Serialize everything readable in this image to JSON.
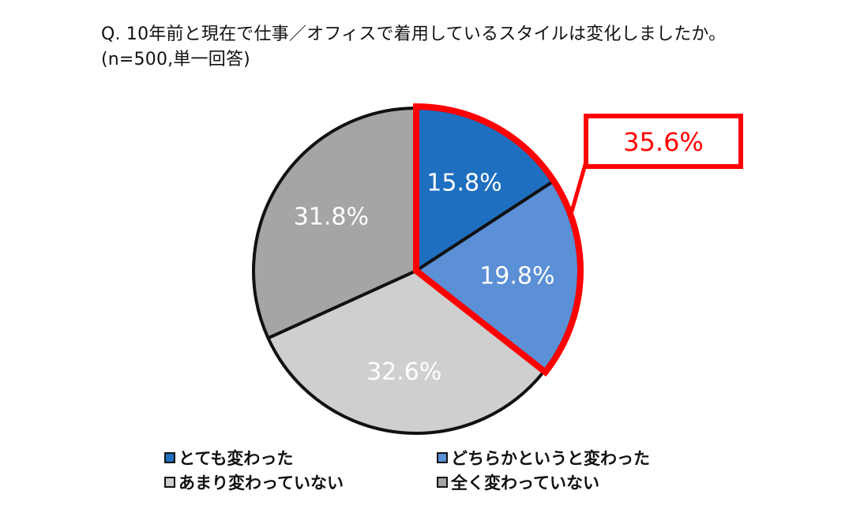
{
  "chart_data": {
    "type": "pie",
    "title": "Q. 10年前と現在で仕事／オフィスで着用しているスタイルは変化しましたか。",
    "subtitle": "(n=500,単一回答)",
    "slices": [
      {
        "label": "とても変わった",
        "value": 15.8,
        "display": "15.8%",
        "color": "#1f6fc0"
      },
      {
        "label": "どちらかというと変わった",
        "value": 19.8,
        "display": "19.8%",
        "color": "#5b8fd6"
      },
      {
        "label": "あまり変わっていない",
        "value": 32.6,
        "display": "32.6%",
        "color": "#cfcfcf"
      },
      {
        "label": "全く変わっていない",
        "value": 31.8,
        "display": "31.8%",
        "color": "#a5a5a5"
      }
    ],
    "highlight": {
      "label": "35.6%",
      "slices": [
        0,
        1
      ],
      "color": "#ff0000"
    },
    "legend_position": "bottom"
  }
}
